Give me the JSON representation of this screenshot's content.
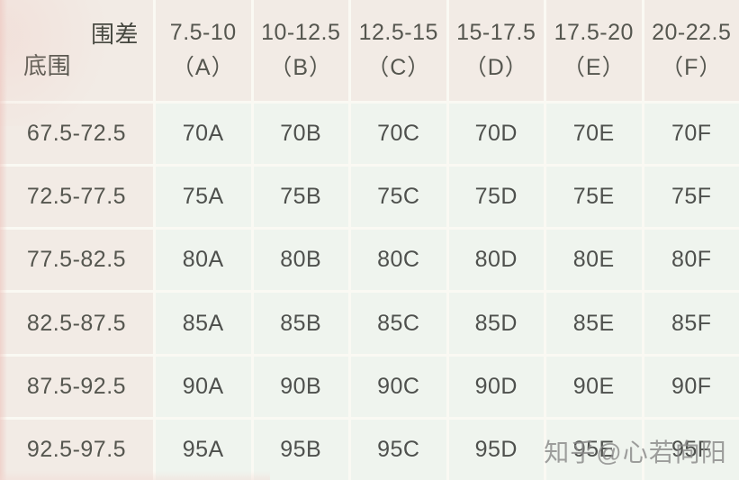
{
  "chart_data": {
    "type": "table",
    "corner": {
      "diff_label": "围差",
      "band_label": "底围"
    },
    "columns": [
      {
        "range": "7.5-10",
        "cup": "（A）"
      },
      {
        "range": "10-12.5",
        "cup": "（B）"
      },
      {
        "range": "12.5-15",
        "cup": "（C）"
      },
      {
        "range": "15-17.5",
        "cup": "（D）"
      },
      {
        "range": "17.5-20",
        "cup": "（E）"
      },
      {
        "range": "20-22.5",
        "cup": "（F）"
      }
    ],
    "rows": [
      {
        "band": "67.5-72.5",
        "cells": [
          "70A",
          "70B",
          "70C",
          "70D",
          "70E",
          "70F"
        ]
      },
      {
        "band": "72.5-77.5",
        "cells": [
          "75A",
          "75B",
          "75C",
          "75D",
          "75E",
          "75F"
        ]
      },
      {
        "band": "77.5-82.5",
        "cells": [
          "80A",
          "80B",
          "80C",
          "80D",
          "80E",
          "80F"
        ]
      },
      {
        "band": "82.5-87.5",
        "cells": [
          "85A",
          "85B",
          "85C",
          "85D",
          "85E",
          "85F"
        ]
      },
      {
        "band": "87.5-92.5",
        "cells": [
          "90A",
          "90B",
          "90C",
          "90D",
          "90E",
          "90F"
        ]
      },
      {
        "band": "92.5-97.5",
        "cells": [
          "95A",
          "95B",
          "95C",
          "95D",
          "95E",
          "95F"
        ]
      }
    ]
  },
  "watermark": {
    "text": "知乎@心若向阳"
  },
  "colors": {
    "header_bg": "#f2ebe5",
    "cell_bg": "#eff4ee",
    "gridline": "#faf9f3",
    "text": "#4e504d",
    "watermark": "#8a8a8a",
    "accent_pink": "#ecbeb6"
  }
}
